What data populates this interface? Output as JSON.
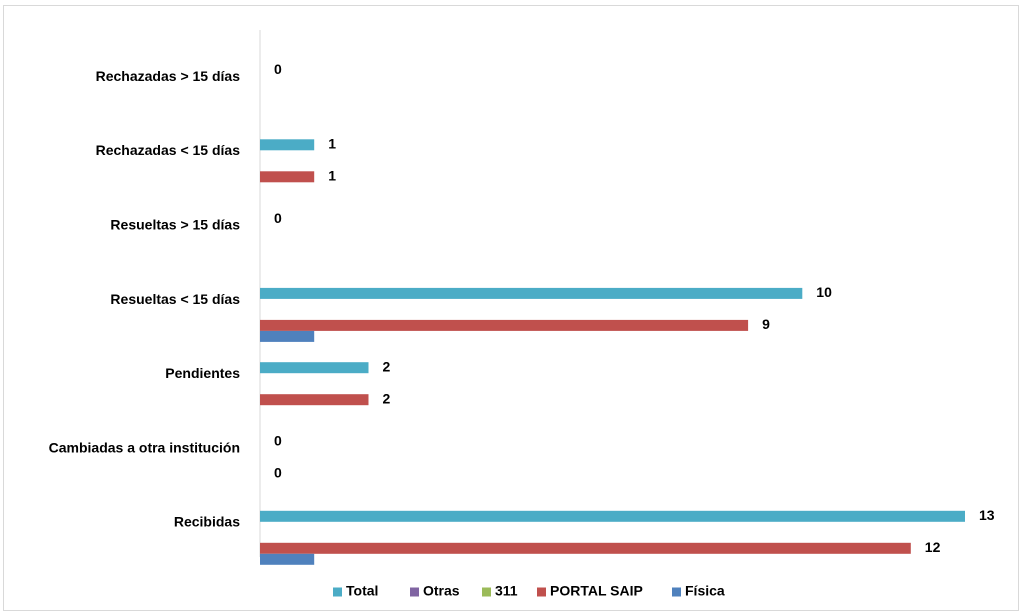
{
  "chart_data": {
    "type": "bar",
    "orientation": "horizontal",
    "categories": [
      "Rechazadas  > 15 días",
      "Rechazadas  < 15 días",
      "Resueltas > 15 días",
      "Resueltas < 15 días",
      "Pendientes",
      "Cambiadas a otra institución",
      "Recibidas"
    ],
    "series": [
      {
        "name": "Total",
        "color": "#4BACC6",
        "values": [
          0,
          1,
          0,
          10,
          2,
          0,
          13
        ]
      },
      {
        "name": "Otras",
        "color": "#8064A2",
        "values": [
          0,
          0,
          0,
          0,
          0,
          0,
          0
        ]
      },
      {
        "name": "311",
        "color": "#9BBB59",
        "values": [
          0,
          0,
          0,
          0,
          0,
          0,
          0
        ]
      },
      {
        "name": "PORTAL SAIP",
        "color": "#C0504D",
        "values": [
          0,
          1,
          0,
          9,
          2,
          0,
          12
        ]
      },
      {
        "name": "Física",
        "color": "#4F81BD",
        "values": [
          0,
          0,
          0,
          1,
          0,
          0,
          1
        ]
      }
    ],
    "data_labels": [
      {
        "category": "Rechazadas  > 15 días",
        "series": "Total",
        "text": "0"
      },
      {
        "category": "Rechazadas  < 15 días",
        "series": "Total",
        "text": "1"
      },
      {
        "category": "Rechazadas  < 15 días",
        "series": "PORTAL SAIP",
        "text": "1"
      },
      {
        "category": "Resueltas > 15 días",
        "series": "Total",
        "text": "0"
      },
      {
        "category": "Resueltas < 15 días",
        "series": "Total",
        "text": "10"
      },
      {
        "category": "Resueltas < 15 días",
        "series": "PORTAL SAIP",
        "text": "9"
      },
      {
        "category": "Pendientes",
        "series": "Total",
        "text": "2"
      },
      {
        "category": "Pendientes",
        "series": "PORTAL SAIP",
        "text": "2"
      },
      {
        "category": "Cambiadas a otra institución",
        "series": "Total",
        "text": "0"
      },
      {
        "category": "Cambiadas a otra institución",
        "series": "PORTAL SAIP",
        "text": "0"
      },
      {
        "category": "Recibidas",
        "series": "Total",
        "text": "13"
      },
      {
        "category": "Recibidas",
        "series": "PORTAL SAIP",
        "text": "12"
      }
    ],
    "xlim": [
      0,
      13
    ],
    "grid": false,
    "legend_position": "bottom"
  }
}
